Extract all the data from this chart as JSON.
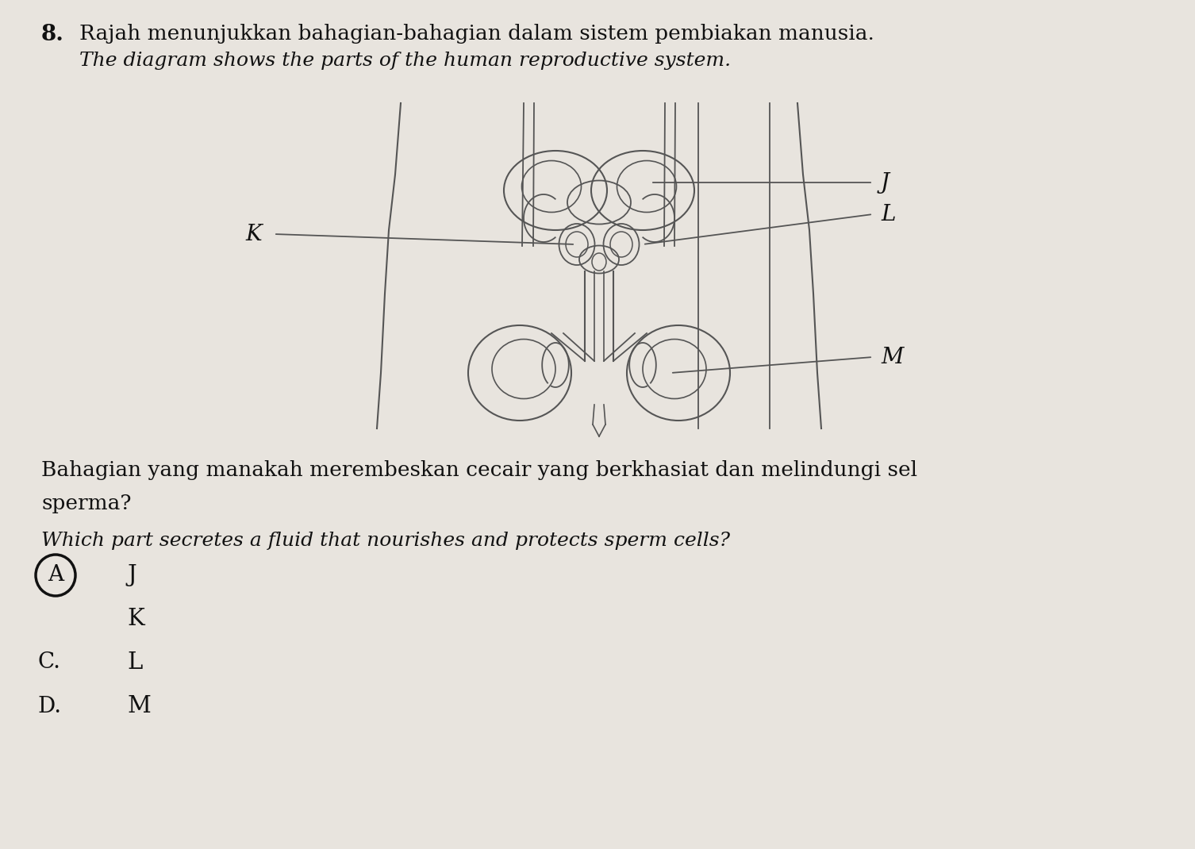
{
  "bg_color": "#e8e4de",
  "question_number": "8.",
  "title_malay": "Rajah menunjukkan bahagian-bahagian dalam sistem pembiakan manusia.",
  "title_english": "The diagram shows the parts of the human reproductive system.",
  "question_malay_line1": "Bahagian yang manakah merembeskan cecair yang berkhasiat dan melindungi sel",
  "question_malay_line2": "sperma?",
  "question_english": "Which part secretes a fluid that nourishes and protects sperm cells?",
  "label_J": "J",
  "label_K": "K",
  "label_L": "L",
  "label_M": "M",
  "line_color": "#555555",
  "text_color": "#111111"
}
